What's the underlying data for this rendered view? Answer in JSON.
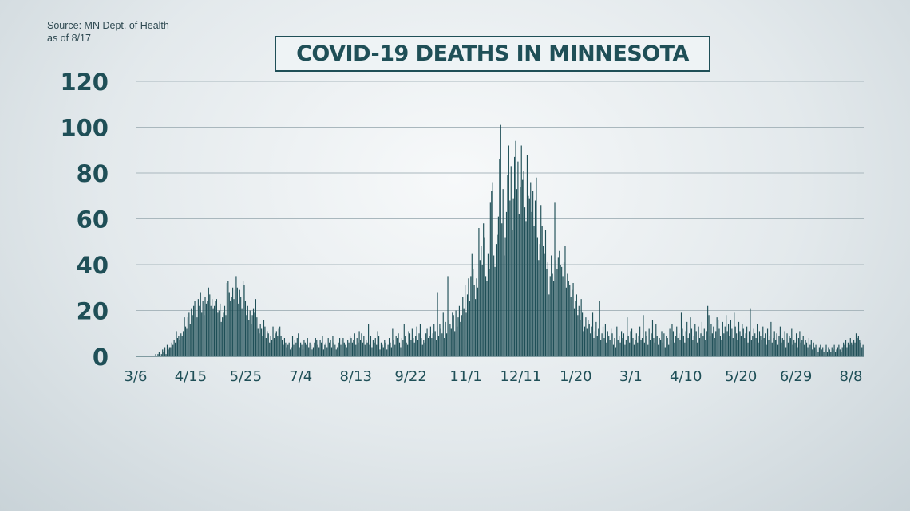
{
  "source": {
    "line1": "Source: MN Dept. of Health",
    "line2": "as of 8/17"
  },
  "colors": {
    "bar": "#1f4f57",
    "grid": "#a9b7bd",
    "text": "#1f4f57"
  },
  "chart_data": {
    "type": "bar",
    "title": "COVID-19 DEATHS IN MINNESOTA",
    "xlabel": "",
    "ylabel": "",
    "ylim": [
      0,
      120
    ],
    "grid": true,
    "y_ticks": [
      "0",
      "20",
      "40",
      "60",
      "80",
      "100",
      "120"
    ],
    "x_tick_labels": [
      "3/6",
      "4/15",
      "5/25",
      "7/4",
      "8/13",
      "9/22",
      "11/1",
      "12/11",
      "1/20",
      "3/1",
      "4/10",
      "5/20",
      "6/29",
      "8/8"
    ],
    "x_start": "3/6",
    "x_end": "8/16",
    "series": [
      {
        "values": [
          0,
          0,
          0,
          0,
          0,
          0,
          0,
          0,
          0,
          0,
          0,
          0,
          0,
          0,
          0,
          0,
          0,
          1,
          0,
          1,
          2,
          0,
          1,
          3,
          2,
          4,
          1,
          5,
          3,
          4,
          4,
          6,
          5,
          7,
          6,
          11,
          8,
          9,
          7,
          10,
          9,
          11,
          17,
          13,
          12,
          17,
          19,
          14,
          21,
          18,
          22,
          24,
          20,
          17,
          25,
          22,
          28,
          19,
          24,
          18,
          26,
          23,
          24,
          30,
          27,
          22,
          25,
          21,
          22,
          24,
          25,
          19,
          20,
          23,
          15,
          17,
          19,
          22,
          18,
          32,
          33,
          28,
          24,
          26,
          30,
          25,
          29,
          35,
          30,
          23,
          29,
          26,
          21,
          33,
          31,
          24,
          18,
          22,
          16,
          20,
          14,
          18,
          21,
          19,
          25,
          17,
          12,
          10,
          14,
          12,
          9,
          16,
          13,
          8,
          11,
          10,
          6,
          9,
          7,
          13,
          8,
          10,
          11,
          9,
          12,
          13,
          9,
          7,
          5,
          8,
          6,
          4,
          5,
          6,
          3,
          4,
          9,
          5,
          7,
          6,
          8,
          10,
          4,
          6,
          5,
          3,
          7,
          6,
          5,
          8,
          4,
          6,
          5,
          3,
          4,
          6,
          8,
          7,
          5,
          4,
          7,
          6,
          9,
          3,
          5,
          6,
          4,
          8,
          6,
          7,
          4,
          9,
          6,
          5,
          3,
          4,
          6,
          8,
          5,
          7,
          8,
          6,
          5,
          4,
          7,
          6,
          9,
          8,
          6,
          7,
          10,
          5,
          8,
          6,
          11,
          7,
          10,
          6,
          9,
          5,
          7,
          6,
          14,
          5,
          9,
          4,
          7,
          6,
          8,
          5,
          11,
          9,
          3,
          6,
          5,
          4,
          7,
          6,
          3,
          5,
          8,
          6,
          4,
          12,
          7,
          5,
          9,
          8,
          10,
          6,
          4,
          8,
          7,
          14,
          9,
          6,
          5,
          11,
          10,
          7,
          12,
          8,
          6,
          9,
          13,
          7,
          10,
          14,
          8,
          5,
          7,
          6,
          10,
          12,
          8,
          9,
          13,
          8,
          10,
          14,
          11,
          7,
          28,
          9,
          14,
          12,
          10,
          19,
          8,
          15,
          10,
          35,
          16,
          14,
          12,
          19,
          18,
          11,
          20,
          13,
          17,
          22,
          15,
          18,
          26,
          21,
          31,
          19,
          27,
          34,
          24,
          35,
          45,
          38,
          31,
          25,
          34,
          30,
          56,
          42,
          48,
          40,
          58,
          52,
          35,
          33,
          45,
          38,
          67,
          72,
          76,
          44,
          39,
          49,
          53,
          61,
          86,
          101,
          58,
          73,
          44,
          52,
          63,
          79,
          92,
          68,
          83,
          55,
          69,
          87,
          94,
          73,
          85,
          62,
          74,
          92,
          77,
          81,
          65,
          59,
          88,
          70,
          69,
          76,
          63,
          72,
          57,
          68,
          78,
          52,
          42,
          49,
          66,
          57,
          48,
          45,
          55,
          38,
          41,
          27,
          35,
          44,
          36,
          33,
          67,
          42,
          38,
          43,
          46,
          40,
          39,
          35,
          41,
          48,
          30,
          36,
          33,
          31,
          26,
          29,
          32,
          21,
          24,
          27,
          18,
          22,
          16,
          25,
          19,
          11,
          13,
          17,
          12,
          16,
          14,
          10,
          13,
          19,
          8,
          11,
          15,
          9,
          12,
          24,
          7,
          10,
          13,
          8,
          14,
          6,
          11,
          9,
          7,
          12,
          10,
          5,
          8,
          4,
          13,
          7,
          9,
          6,
          11,
          8,
          10,
          5,
          7,
          17,
          9,
          6,
          11,
          12,
          8,
          5,
          7,
          10,
          6,
          9,
          13,
          7,
          8,
          18,
          6,
          11,
          9,
          5,
          12,
          7,
          10,
          16,
          8,
          6,
          14,
          9,
          5,
          8,
          7,
          11,
          6,
          10,
          4,
          9,
          8,
          5,
          12,
          7,
          14,
          11,
          6,
          9,
          13,
          8,
          10,
          7,
          19,
          12,
          9,
          6,
          11,
          15,
          8,
          10,
          17,
          12,
          7,
          9,
          14,
          11,
          6,
          13,
          8,
          10,
          15,
          9,
          12,
          7,
          11,
          22,
          18,
          9,
          14,
          10,
          13,
          8,
          11,
          17,
          16,
          12,
          9,
          7,
          15,
          10,
          13,
          18,
          11,
          14,
          9,
          16,
          12,
          8,
          19,
          13,
          10,
          7,
          15,
          11,
          9,
          14,
          12,
          8,
          10,
          13,
          6,
          11,
          21,
          7,
          9,
          12,
          10,
          8,
          14,
          6,
          11,
          9,
          7,
          13,
          8,
          10,
          5,
          12,
          7,
          9,
          15,
          6,
          8,
          11,
          7,
          10,
          5,
          9,
          13,
          6,
          8,
          7,
          11,
          4,
          10,
          6,
          9,
          8,
          12,
          5,
          7,
          6,
          10,
          4,
          8,
          11,
          6,
          7,
          9,
          5,
          7,
          6,
          4,
          8,
          5,
          7,
          3,
          6,
          4,
          5,
          3,
          2,
          4,
          5,
          3,
          4,
          2,
          3,
          5,
          2,
          4,
          3,
          2,
          4,
          3,
          5,
          2,
          3,
          4,
          5,
          3,
          2,
          4,
          6,
          5,
          7,
          4,
          6,
          5,
          8,
          6,
          5,
          7,
          6,
          10,
          8,
          9,
          7,
          6,
          4,
          5
        ]
      }
    ]
  }
}
